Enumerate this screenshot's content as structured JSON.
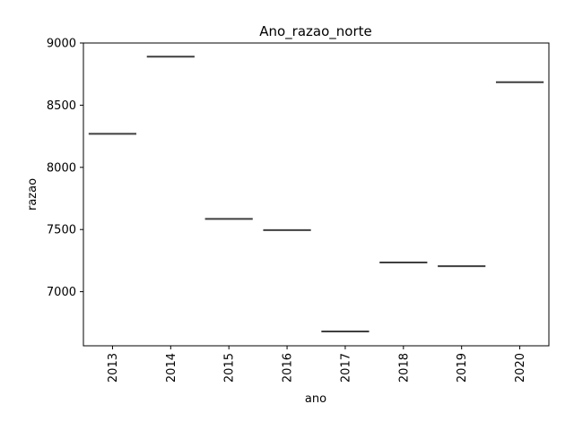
{
  "chart_data": {
    "type": "box",
    "title": "Ano_razao_norte",
    "xlabel": "ano",
    "ylabel": "razao",
    "categories": [
      "2013",
      "2014",
      "2015",
      "2016",
      "2017",
      "2018",
      "2019",
      "2020"
    ],
    "values": [
      8270,
      8890,
      7585,
      7495,
      6680,
      7235,
      7205,
      8685
    ],
    "ylim": [
      6565,
      9000
    ],
    "yticks": [
      7000,
      7500,
      8000,
      8500,
      9000
    ],
    "xtick_rotation": 90,
    "grid": false,
    "colors": {
      "median_line": "#3f3f3f",
      "axis": "#000000"
    }
  }
}
